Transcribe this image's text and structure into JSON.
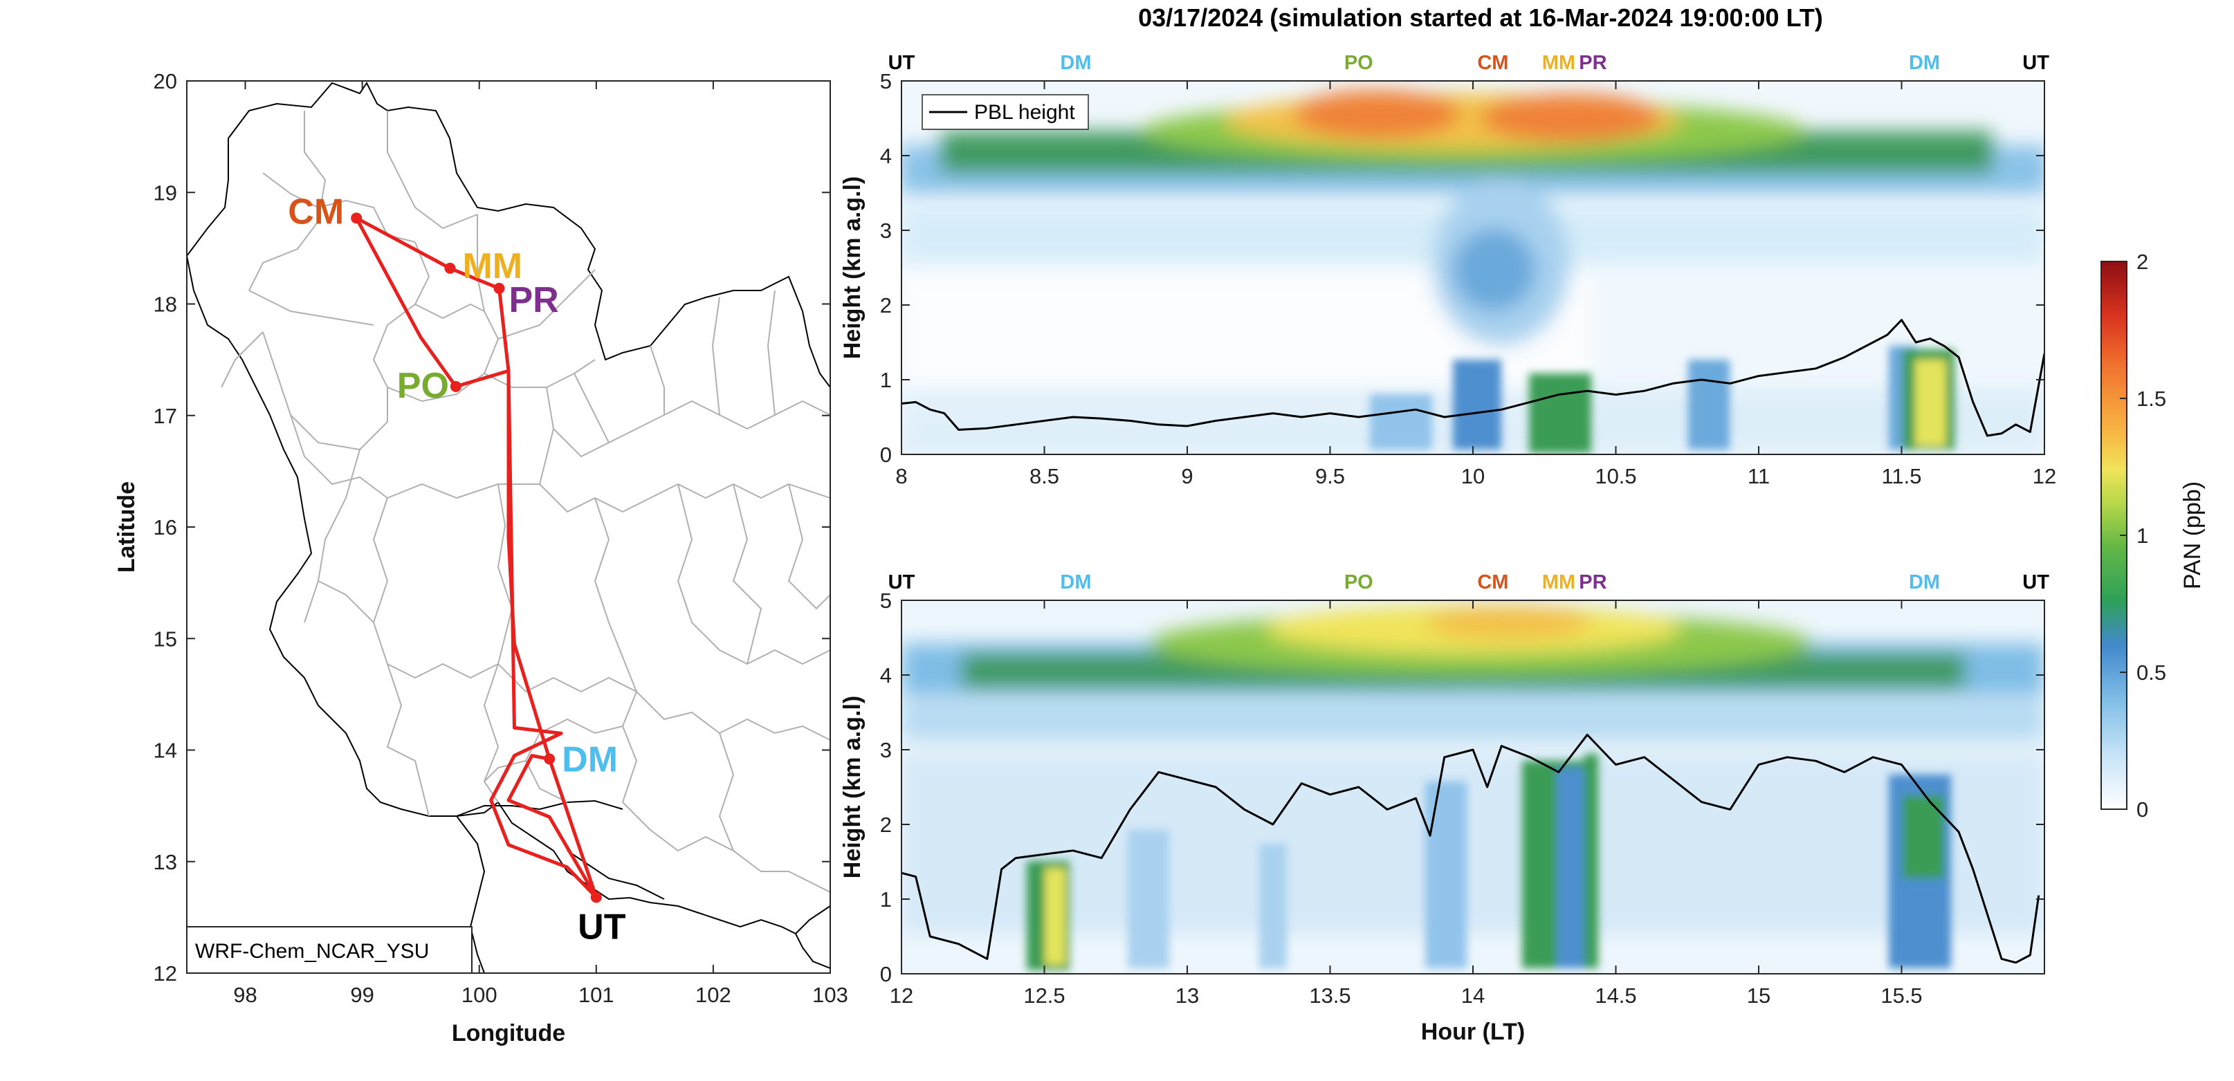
{
  "figure_title": "03/17/2024 (simulation started at 16-Mar-2024 19:00:00 LT)",
  "colors": {
    "route": "#e8201e",
    "UT": "#000000",
    "DM": "#4dbeee",
    "PO": "#77ac30",
    "CM": "#d95319",
    "MM": "#edb120",
    "PR": "#7e2f8e",
    "pbl_line": "#000000",
    "boundary": "#b0b0b0"
  },
  "colorbar": {
    "label": "PAN (ppb)",
    "min": 0,
    "max": 2,
    "ticks": [
      "0",
      "0.5",
      "1",
      "1.5",
      "2"
    ],
    "colormap": [
      "#ffffff",
      "#c6e3f7",
      "#7fbde6",
      "#4289cc",
      "#2ea05a",
      "#63b846",
      "#b9d84a",
      "#f0e45a",
      "#f7bb45",
      "#f59a3b",
      "#ef6b2d",
      "#d9341f",
      "#b41a17",
      "#8e0e13"
    ]
  },
  "chart_data": [
    {
      "type": "map",
      "xlabel": "Longitude",
      "ylabel": "Latitude",
      "xlim": [
        97.5,
        103
      ],
      "ylim": [
        12,
        20
      ],
      "xticks": [
        "98",
        "99",
        "100",
        "101",
        "102",
        "103"
      ],
      "yticks": [
        "12",
        "13",
        "14",
        "15",
        "16",
        "17",
        "18",
        "19",
        "20"
      ],
      "model_label": "WRF-Chem_NCAR_YSU",
      "stations": [
        {
          "name": "CM",
          "lon": 98.95,
          "lat": 18.77
        },
        {
          "name": "MM",
          "lon": 99.75,
          "lat": 18.32
        },
        {
          "name": "PR",
          "lon": 100.17,
          "lat": 18.14
        },
        {
          "name": "PO",
          "lon": 99.8,
          "lat": 17.26
        },
        {
          "name": "DM",
          "lon": 100.6,
          "lat": 13.92
        },
        {
          "name": "UT",
          "lon": 101.0,
          "lat": 12.68
        }
      ],
      "route": [
        [
          101.0,
          12.68
        ],
        [
          100.6,
          13.92
        ],
        [
          100.6,
          13.92
        ],
        [
          100.3,
          14.95
        ],
        [
          100.25,
          15.9
        ],
        [
          100.25,
          17.4
        ],
        [
          99.8,
          17.26
        ],
        [
          99.5,
          17.7
        ],
        [
          98.95,
          18.77
        ],
        [
          99.75,
          18.32
        ],
        [
          100.17,
          18.14
        ],
        [
          100.25,
          17.4
        ],
        [
          100.3,
          14.2
        ],
        [
          100.7,
          14.15
        ],
        [
          100.3,
          13.95
        ],
        [
          100.1,
          13.55
        ],
        [
          100.25,
          13.15
        ],
        [
          100.75,
          12.95
        ],
        [
          101.0,
          12.68
        ],
        [
          100.6,
          13.4
        ],
        [
          100.25,
          13.55
        ],
        [
          100.45,
          13.95
        ],
        [
          100.6,
          13.92
        ]
      ]
    },
    {
      "type": "heatmap",
      "ylabel": "Height (km a.g.l)",
      "xlabel": "",
      "xlim": [
        8,
        12
      ],
      "ylim": [
        0,
        5
      ],
      "xticks": [
        "8",
        "8.5",
        "9",
        "9.5",
        "10",
        "10.5",
        "11",
        "11.5",
        "12"
      ],
      "yticks": [
        "0",
        "1",
        "2",
        "3",
        "4",
        "5"
      ],
      "legend": "PBL height",
      "station_labels": [
        {
          "name": "UT",
          "x": 8.0
        },
        {
          "name": "DM",
          "x": 8.61
        },
        {
          "name": "PO",
          "x": 9.6
        },
        {
          "name": "CM",
          "x": 10.07
        },
        {
          "name": "MM",
          "x": 10.3
        },
        {
          "name": "PR",
          "x": 10.42
        },
        {
          "name": "DM",
          "x": 11.58
        },
        {
          "name": "UT",
          "x": 11.97
        }
      ],
      "pbl_height": {
        "x": [
          8.0,
          8.05,
          8.1,
          8.15,
          8.2,
          8.3,
          8.4,
          8.5,
          8.6,
          8.7,
          8.8,
          8.9,
          9.0,
          9.1,
          9.2,
          9.3,
          9.4,
          9.5,
          9.6,
          9.7,
          9.8,
          9.9,
          10.0,
          10.1,
          10.2,
          10.3,
          10.4,
          10.5,
          10.6,
          10.7,
          10.8,
          10.9,
          11.0,
          11.1,
          11.2,
          11.3,
          11.4,
          11.45,
          11.5,
          11.55,
          11.6,
          11.65,
          11.7,
          11.75,
          11.8,
          11.85,
          11.9,
          11.95,
          12.0
        ],
        "y": [
          0.68,
          0.7,
          0.6,
          0.55,
          0.33,
          0.35,
          0.4,
          0.45,
          0.5,
          0.48,
          0.45,
          0.4,
          0.38,
          0.45,
          0.5,
          0.55,
          0.5,
          0.55,
          0.5,
          0.55,
          0.6,
          0.5,
          0.55,
          0.6,
          0.7,
          0.8,
          0.85,
          0.8,
          0.85,
          0.95,
          1.0,
          0.95,
          1.05,
          1.1,
          1.15,
          1.3,
          1.5,
          1.6,
          1.8,
          1.5,
          1.55,
          1.45,
          1.3,
          0.7,
          0.25,
          0.28,
          0.4,
          0.3,
          1.35
        ]
      },
      "pan_features": [
        {
          "desc": "upper layer peak",
          "x_center": 10.1,
          "y_center": 4.45,
          "value": 1.5
        },
        {
          "desc": "surface plume",
          "x_range": [
            11.5,
            11.7
          ],
          "y_range": [
            0.1,
            1.4
          ],
          "value": 1.2
        }
      ]
    },
    {
      "type": "heatmap",
      "ylabel": "Height (km a.g.l)",
      "xlabel": "Hour (LT)",
      "xlim": [
        12,
        16
      ],
      "ylim": [
        0,
        5
      ],
      "xticks": [
        "12",
        "12.5",
        "13",
        "13.5",
        "14",
        "14.5",
        "15",
        "15.5"
      ],
      "yticks": [
        "0",
        "1",
        "2",
        "3",
        "4",
        "5"
      ],
      "station_labels": [
        {
          "name": "UT",
          "x": 12.0
        },
        {
          "name": "DM",
          "x": 12.61
        },
        {
          "name": "PO",
          "x": 13.6
        },
        {
          "name": "CM",
          "x": 14.07
        },
        {
          "name": "MM",
          "x": 14.3
        },
        {
          "name": "PR",
          "x": 14.42
        },
        {
          "name": "DM",
          "x": 15.58
        },
        {
          "name": "UT",
          "x": 15.97
        }
      ],
      "pbl_height": {
        "x": [
          12.0,
          12.05,
          12.1,
          12.2,
          12.3,
          12.35,
          12.4,
          12.5,
          12.6,
          12.7,
          12.8,
          12.9,
          13.0,
          13.1,
          13.2,
          13.3,
          13.4,
          13.5,
          13.6,
          13.7,
          13.8,
          13.85,
          13.9,
          14.0,
          14.05,
          14.1,
          14.2,
          14.3,
          14.4,
          14.5,
          14.6,
          14.7,
          14.8,
          14.9,
          15.0,
          15.1,
          15.2,
          15.3,
          15.4,
          15.5,
          15.6,
          15.65,
          15.7,
          15.75,
          15.8,
          15.85,
          15.9,
          15.95,
          15.98
        ],
        "y": [
          1.35,
          1.3,
          0.5,
          0.4,
          0.2,
          1.4,
          1.55,
          1.6,
          1.65,
          1.55,
          2.2,
          2.7,
          2.6,
          2.5,
          2.2,
          2.0,
          2.55,
          2.4,
          2.5,
          2.2,
          2.35,
          1.85,
          2.9,
          3.0,
          2.5,
          3.05,
          2.9,
          2.7,
          3.2,
          2.8,
          2.9,
          2.6,
          2.3,
          2.2,
          2.8,
          2.9,
          2.85,
          2.7,
          2.9,
          2.8,
          2.3,
          2.1,
          1.9,
          1.4,
          0.8,
          0.2,
          0.15,
          0.25,
          1.05
        ]
      },
      "pan_features": [
        {
          "desc": "upper layer peak",
          "x_center": 14.1,
          "y_center": 4.5,
          "value": 1.2
        },
        {
          "desc": "surface plume DM",
          "x_range": [
            12.45,
            12.7
          ],
          "y_range": [
            0.1,
            1.55
          ],
          "value": 1.1
        },
        {
          "desc": "plume near MM/PR",
          "x_range": [
            14.15,
            14.4
          ],
          "y_range": [
            0.1,
            2.7
          ],
          "value": 0.8
        }
      ]
    }
  ]
}
